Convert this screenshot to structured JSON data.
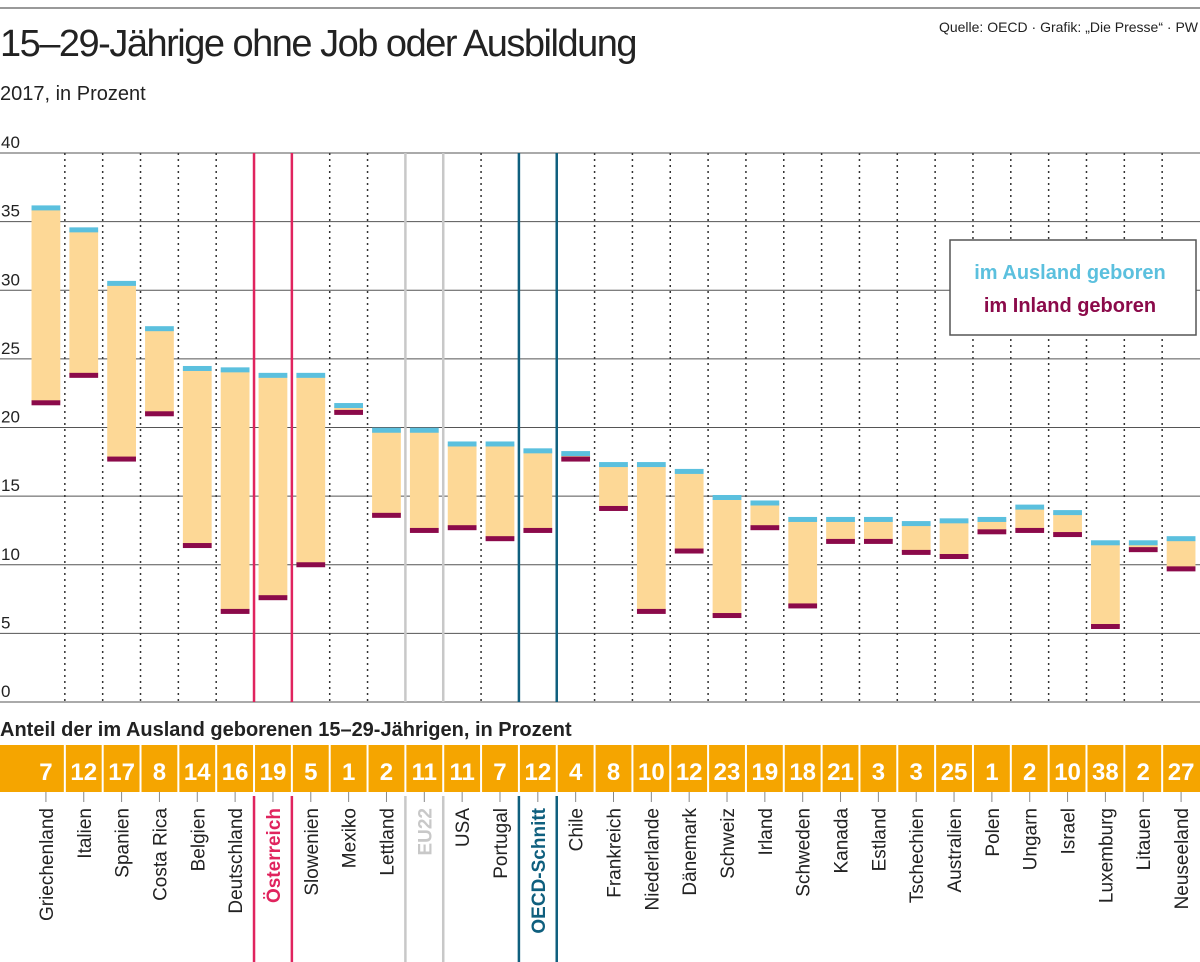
{
  "chart_data": {
    "type": "range",
    "title": "15–29-Jährige ohne Job oder Ausbildung",
    "subtitle": "2017, in Prozent",
    "source": "Quelle: OECD · Grafik: „Die Presse“ · PW",
    "categories": [
      "Griechenland",
      "Italien",
      "Spanien",
      "Costa Rica",
      "Belgien",
      "Deutschland",
      "Österreich",
      "Slowenien",
      "Mexiko",
      "Lettland",
      "EU22",
      "USA",
      "Portugal",
      "OECD-Schnitt",
      "Chile",
      "Frankreich",
      "Niederlande",
      "Dänemark",
      "Schweiz",
      "Irland",
      "Schweden",
      "Kanada",
      "Estland",
      "Tschechien",
      "Australien",
      "Polen",
      "Ungarn",
      "Israel",
      "Luxemburg",
      "Litauen",
      "Neuseeland"
    ],
    "label_colors": [
      "#222",
      "#222",
      "#222",
      "#222",
      "#222",
      "#222",
      "#e0245e",
      "#222",
      "#222",
      "#222",
      "#c8c8c8",
      "#222",
      "#222",
      "#0f5f7e",
      "#222",
      "#222",
      "#222",
      "#222",
      "#222",
      "#222",
      "#222",
      "#222",
      "#222",
      "#222",
      "#222",
      "#222",
      "#222",
      "#222",
      "#222",
      "#222",
      "#222"
    ],
    "range_color": "#fdd896",
    "series": [
      {
        "name": "im Ausland geboren",
        "color": "#5bc0de",
        "values": [
          36.0,
          34.4,
          30.5,
          27.2,
          24.3,
          24.2,
          23.8,
          23.8,
          21.6,
          19.8,
          19.8,
          18.8,
          18.8,
          18.3,
          18.1,
          17.3,
          17.3,
          16.8,
          14.9,
          14.5,
          13.3,
          13.3,
          13.3,
          13.0,
          13.2,
          13.3,
          14.2,
          13.8,
          11.6,
          11.6,
          11.9
        ]
      },
      {
        "name": "im Inland geboren",
        "color": "#8b0a4a",
        "values": [
          21.8,
          23.8,
          17.7,
          21.0,
          11.4,
          6.6,
          7.6,
          10.0,
          21.1,
          13.6,
          12.5,
          12.7,
          11.9,
          12.5,
          17.7,
          14.1,
          6.6,
          11.0,
          6.3,
          12.7,
          7.0,
          11.7,
          11.7,
          10.9,
          10.6,
          12.4,
          12.5,
          12.2,
          5.5,
          11.1,
          9.7
        ]
      }
    ],
    "ylim": [
      0,
      40
    ],
    "yticks": [
      0,
      5,
      10,
      15,
      20,
      25,
      30,
      35,
      40
    ],
    "grid": true,
    "legend": "right",
    "share": {
      "title": "Anteil der im Ausland geborenen 15–29-Jährigen, in Prozent",
      "color": "#f5a500",
      "values": [
        7,
        12,
        17,
        8,
        14,
        16,
        19,
        5,
        1,
        2,
        11,
        11,
        7,
        12,
        4,
        8,
        10,
        12,
        23,
        19,
        18,
        21,
        3,
        3,
        25,
        1,
        2,
        10,
        38,
        2,
        27
      ]
    }
  }
}
